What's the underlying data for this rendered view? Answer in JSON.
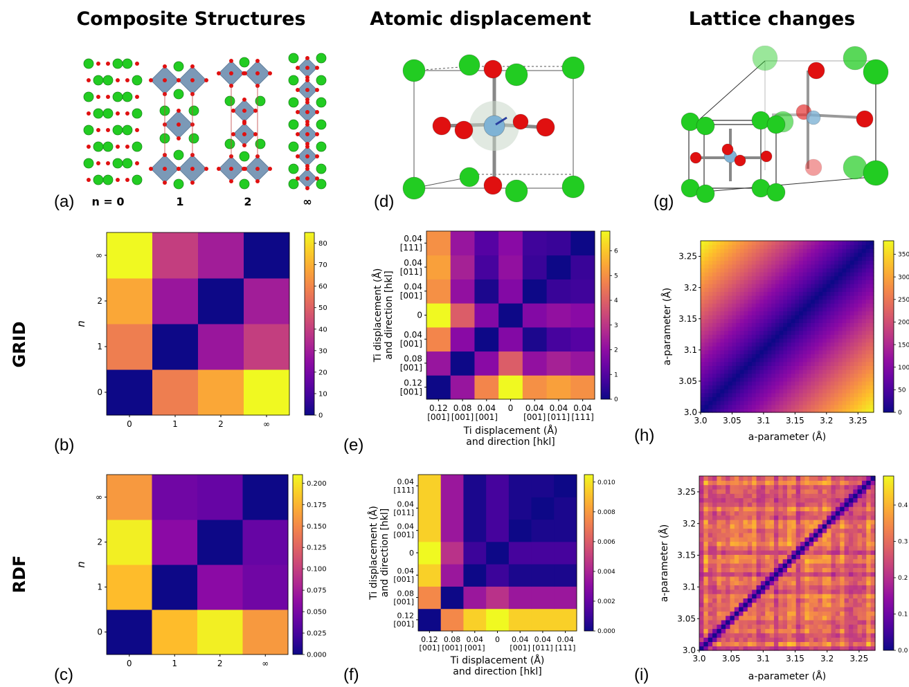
{
  "columns": {
    "col1": "Composite Structures",
    "col2": "Atomic displacement",
    "col3": "Lattice changes"
  },
  "rows": {
    "grid": "GRID",
    "rdf": "RDF"
  },
  "panel_labels": {
    "a": "(a)",
    "b": "(b)",
    "c": "(c)",
    "d": "(d)",
    "e": "(e)",
    "f": "(f)",
    "g": "(g)",
    "h": "(h)",
    "i": "(i)"
  },
  "structures": {
    "labels": [
      "n = 0",
      "1",
      "2",
      "∞"
    ]
  },
  "colors": {
    "oxygen": "#e01010",
    "a_site": "#22cc22",
    "octahedron": "#6d8fb0",
    "ti": "#7fb3d5",
    "bond": "#888888"
  },
  "chart_data": [
    {
      "id": "b",
      "type": "heatmap",
      "x_categories": [
        "0",
        "1",
        "2",
        "∞"
      ],
      "y_categories": [
        "0",
        "1",
        "2",
        "∞"
      ],
      "xlabel": "n",
      "ylabel": "n",
      "values": [
        [
          0,
          58,
          68,
          85
        ],
        [
          58,
          0,
          28,
          40
        ],
        [
          68,
          28,
          0,
          30
        ],
        [
          85,
          40,
          30,
          0
        ]
      ],
      "colorbar": {
        "min": 0,
        "max": 85,
        "ticks": [
          "0",
          "10",
          "20",
          "30",
          "40",
          "50",
          "60",
          "70",
          "80"
        ]
      }
    },
    {
      "id": "c",
      "type": "heatmap",
      "x_categories": [
        "0",
        "1",
        "2",
        "∞"
      ],
      "y_categories": [
        "0",
        "1",
        "2",
        "∞"
      ],
      "xlabel": "n",
      "ylabel": "n",
      "values": [
        [
          0,
          0.18,
          0.205,
          0.16
        ],
        [
          0.18,
          0,
          0.06,
          0.045
        ],
        [
          0.205,
          0.06,
          0,
          0.04
        ],
        [
          0.16,
          0.045,
          0.04,
          0
        ]
      ],
      "colorbar": {
        "min": 0,
        "max": 0.21,
        "ticks": [
          "0.000",
          "0.025",
          "0.050",
          "0.075",
          "0.100",
          "0.125",
          "0.150",
          "0.175",
          "0.200"
        ]
      }
    },
    {
      "id": "e",
      "type": "heatmap",
      "x_categories": [
        "0.12\n[001]",
        "0.08\n[001]",
        "0.04\n[001]",
        "0",
        "0.04\n[001]",
        "0.04\n[011]",
        "0.04\n[111]"
      ],
      "y_categories": [
        "0.12\n[001]",
        "0.08\n[001]",
        "0.04\n[001]",
        "0",
        "0.04\n[001]",
        "0.04\n[011]",
        "0.04\n[111]"
      ],
      "xlabel": "Ti displacement (Å)\nand direction [hkl]",
      "ylabel": "Ti displacement (Å)\nand direction [hkl]",
      "values": [
        [
          0,
          2.2,
          4.8,
          6.8,
          5.0,
          5.3,
          5.0
        ],
        [
          2.2,
          0,
          1.9,
          3.9,
          2.1,
          2.5,
          2.2
        ],
        [
          4.8,
          1.9,
          0,
          1.8,
          0.2,
          0.8,
          1.0
        ],
        [
          6.8,
          3.9,
          1.8,
          0,
          1.8,
          2.1,
          1.9
        ],
        [
          5.0,
          2.1,
          0.2,
          1.8,
          0,
          0.6,
          0.7
        ],
        [
          5.3,
          2.5,
          0.8,
          2.1,
          0.6,
          0,
          0.6
        ],
        [
          5.0,
          2.2,
          1.0,
          1.9,
          0.7,
          0.6,
          0
        ]
      ],
      "colorbar": {
        "min": 0,
        "max": 6.8,
        "ticks": [
          "0",
          "1",
          "2",
          "3",
          "4",
          "5",
          "6"
        ]
      }
    },
    {
      "id": "f",
      "type": "heatmap",
      "x_categories": [
        "0.12\n[001]",
        "0.08\n[001]",
        "0.04\n[001]",
        "0",
        "0.04\n[001]",
        "0.04\n[011]",
        "0.04\n[111]"
      ],
      "y_categories": [
        "0.12\n[001]",
        "0.08\n[001]",
        "0.04\n[001]",
        "0",
        "0.04\n[001]",
        "0.04\n[011]",
        "0.04\n[111]"
      ],
      "xlabel": "Ti displacement (Å)\nand direction [hkl]",
      "ylabel": "Ti displacement (Å)\nand direction [hkl]",
      "values": [
        [
          0,
          0.0075,
          0.0095,
          0.0105,
          0.0095,
          0.0095,
          0.0095
        ],
        [
          0.0075,
          0,
          0.0035,
          0.0045,
          0.0035,
          0.0035,
          0.0035
        ],
        [
          0.0095,
          0.0035,
          0,
          0.001,
          0.0003,
          0.0003,
          0.0003
        ],
        [
          0.0105,
          0.0045,
          0.001,
          0,
          0.0012,
          0.0012,
          0.0012
        ],
        [
          0.0095,
          0.0035,
          0.0003,
          0.0012,
          0,
          0.0003,
          0.0003
        ],
        [
          0.0095,
          0.0035,
          0.0003,
          0.0012,
          0.0003,
          0,
          0.0003
        ],
        [
          0.0095,
          0.0035,
          0.0003,
          0.0012,
          0.0003,
          0.0003,
          0
        ]
      ],
      "colorbar": {
        "min": 0,
        "max": 0.0105,
        "ticks": [
          "0.000",
          "0.002",
          "0.004",
          "0.006",
          "0.008",
          "0.010"
        ]
      }
    },
    {
      "id": "h",
      "type": "heatmap",
      "x_range": [
        3.0,
        3.275
      ],
      "y_range": [
        3.0,
        3.275
      ],
      "x_ticks": [
        "3.0",
        "3.05",
        "3.1",
        "3.15",
        "3.2",
        "3.25"
      ],
      "y_ticks": [
        "3.0",
        "3.05",
        "3.1",
        "3.15",
        "3.2",
        "3.25"
      ],
      "xlabel": "a-parameter (Å)",
      "ylabel": "a-parameter (Å)",
      "colorbar": {
        "min": 0,
        "max": 380,
        "ticks": [
          "0",
          "50",
          "100",
          "150",
          "200",
          "250",
          "300",
          "350"
        ]
      }
    },
    {
      "id": "i",
      "type": "heatmap",
      "x_range": [
        3.0,
        3.275
      ],
      "y_range": [
        3.0,
        3.275
      ],
      "x_ticks": [
        "3.0",
        "3.05",
        "3.1",
        "3.15",
        "3.2",
        "3.25"
      ],
      "y_ticks": [
        "3.0",
        "3.05",
        "3.1",
        "3.15",
        "3.2",
        "3.25"
      ],
      "xlabel": "a-parameter (Å)",
      "ylabel": "a-parameter (Å)",
      "colorbar": {
        "min": 0,
        "max": 0.48,
        "ticks": [
          "0.0",
          "0.1",
          "0.2",
          "0.3",
          "0.4"
        ]
      }
    }
  ]
}
